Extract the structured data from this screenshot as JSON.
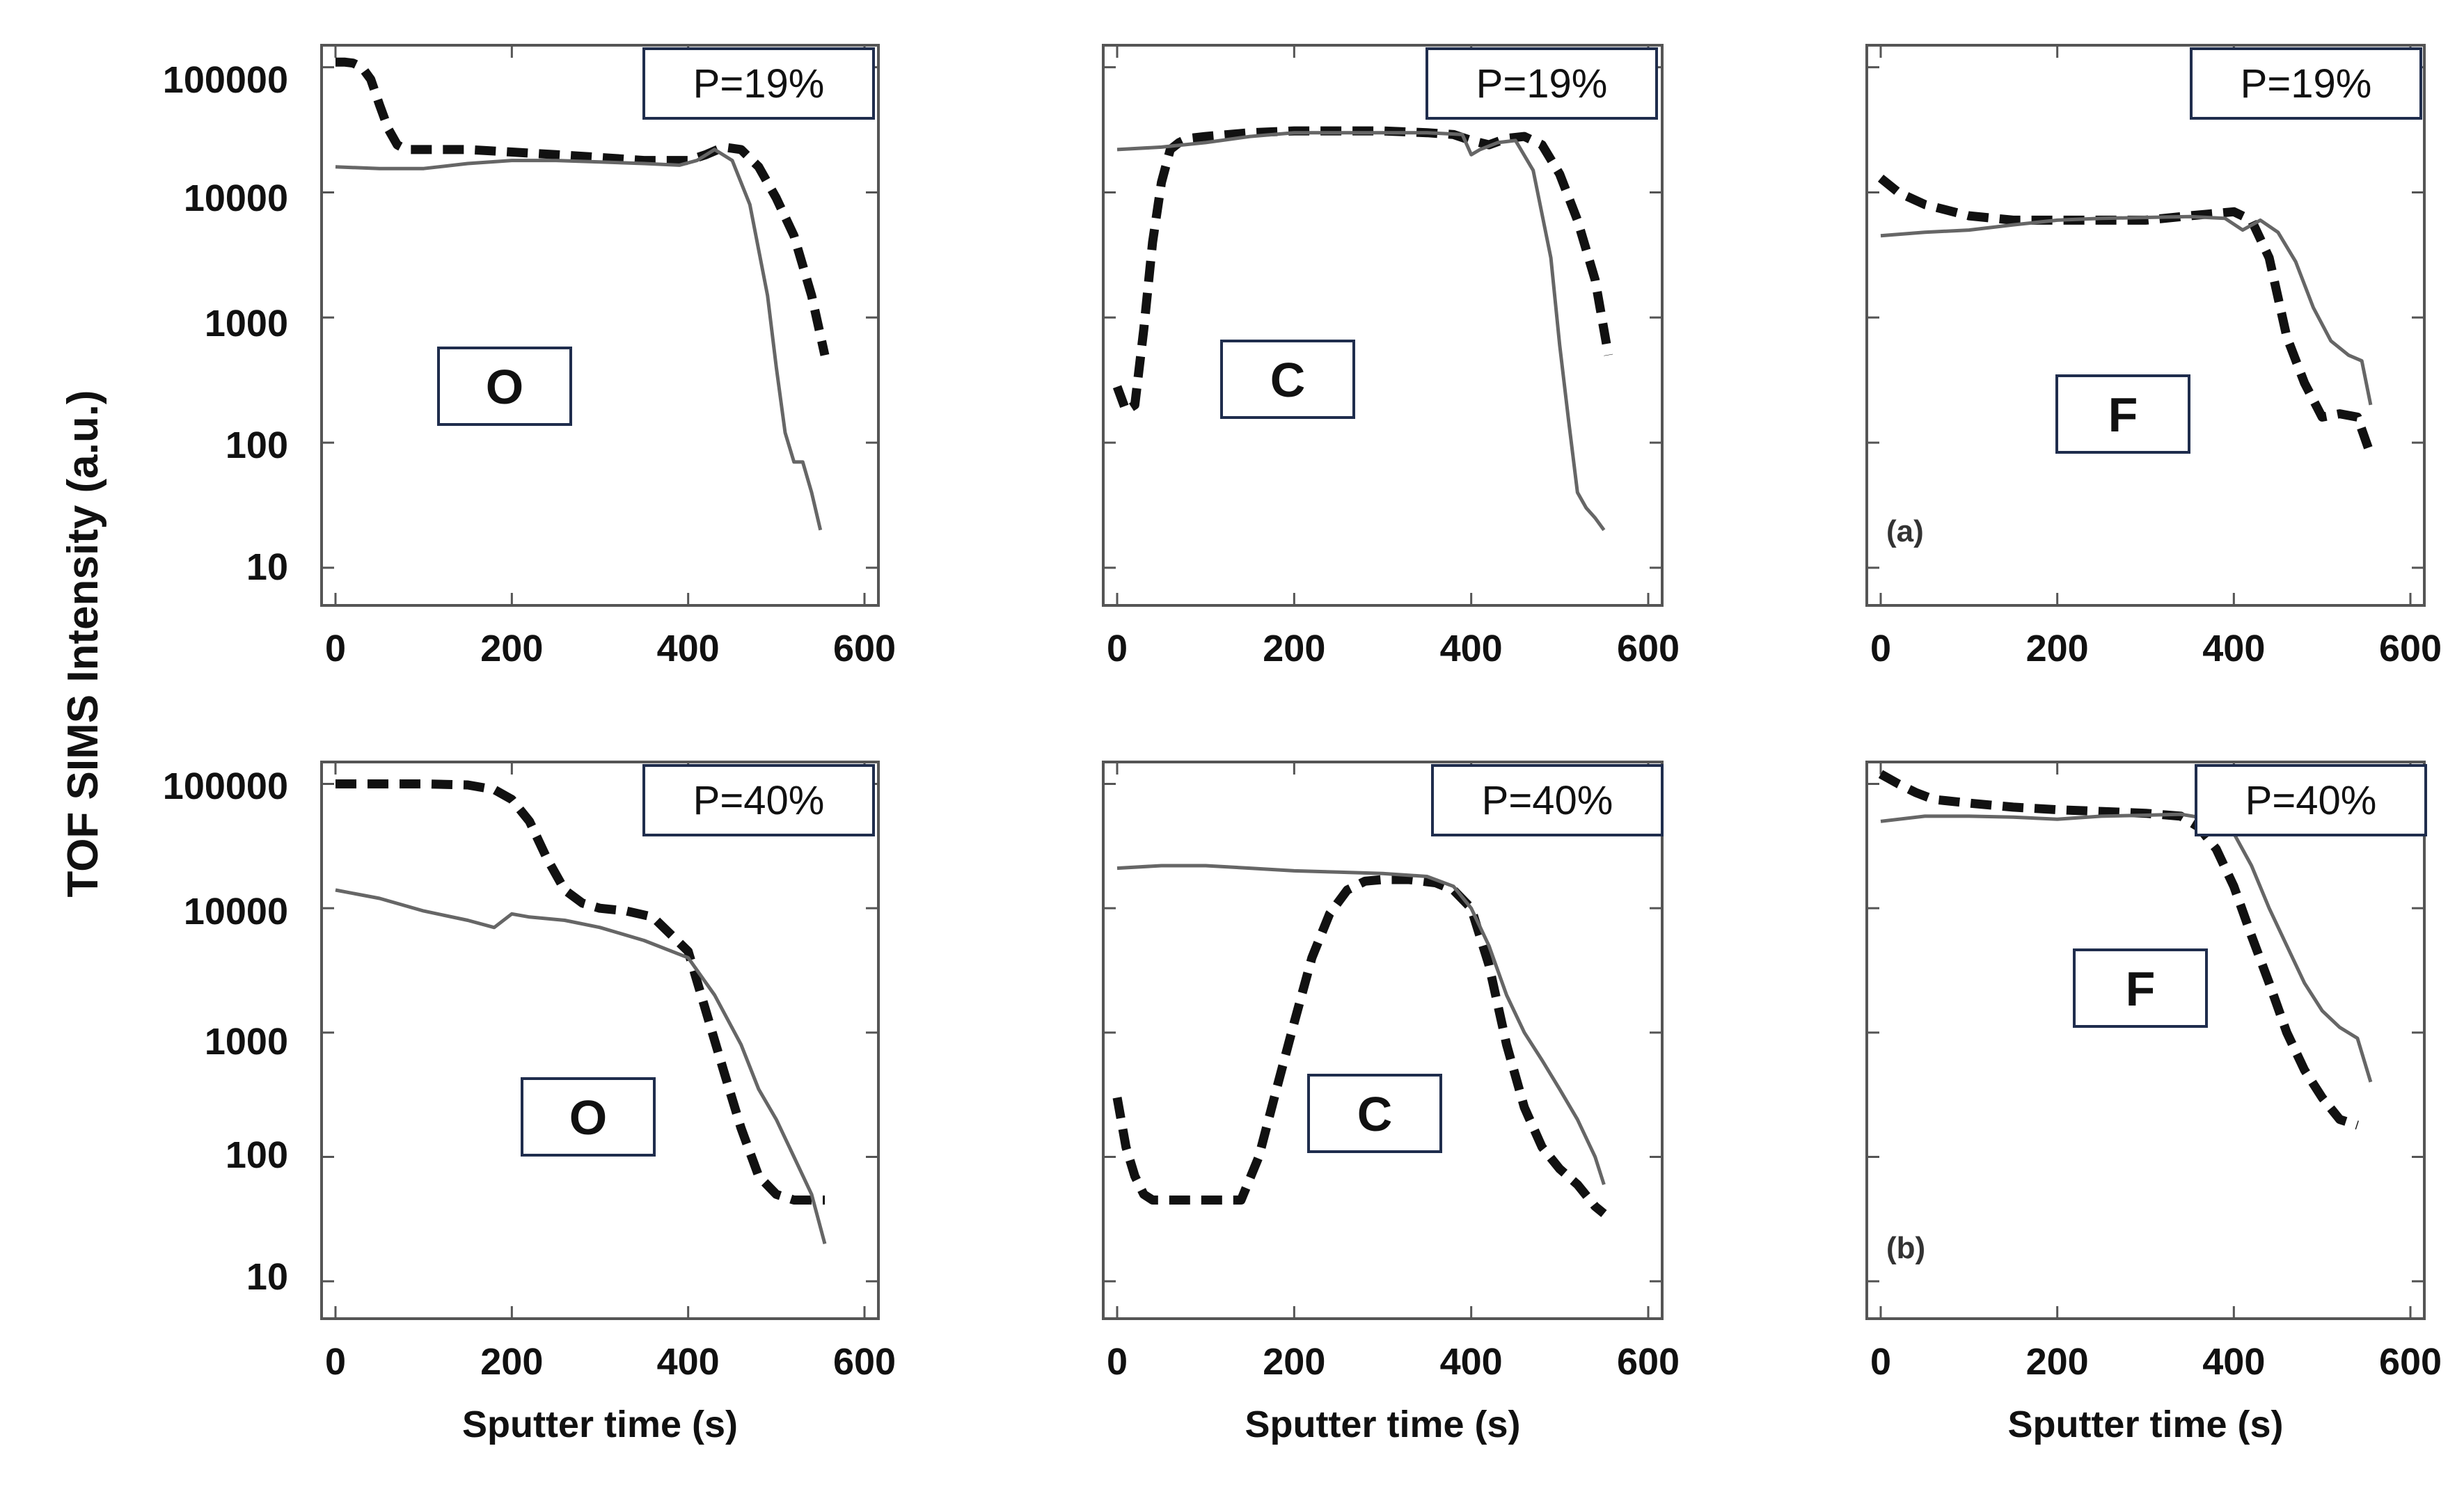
{
  "figure": {
    "ylabel": "TOF SIMS Intensity (a.u.)",
    "xlabel": "Sputter time (s)",
    "panel_tags": [
      "(a)",
      "(b)"
    ]
  },
  "chart_data": [
    {
      "type": "line",
      "row": "top",
      "element": "O",
      "label": "P=19%",
      "xlim": [
        0,
        600
      ],
      "ylim": [
        5,
        150000
      ],
      "yscale": "log",
      "x_ticks": [
        0,
        200,
        400,
        600
      ],
      "y_ticks": [
        10,
        100,
        1000,
        10000,
        100000
      ],
      "series": [
        {
          "name": "dashed",
          "style": "dashed",
          "x": [
            0,
            10,
            20,
            30,
            40,
            50,
            60,
            70,
            80,
            100,
            150,
            200,
            250,
            300,
            350,
            380,
            400,
            420,
            440,
            460,
            480,
            500,
            520,
            540,
            555
          ],
          "y": [
            110000,
            110000,
            108000,
            100000,
            80000,
            50000,
            32000,
            24000,
            22000,
            22000,
            22000,
            21000,
            20000,
            19000,
            18000,
            18000,
            18000,
            20000,
            23000,
            22000,
            16000,
            9000,
            4500,
            1500,
            500
          ]
        },
        {
          "name": "solid",
          "style": "solid",
          "x": [
            0,
            50,
            100,
            150,
            200,
            250,
            300,
            350,
            390,
            410,
            430,
            450,
            470,
            490,
            500,
            510,
            520,
            530,
            540,
            550
          ],
          "y": [
            16000,
            15500,
            15500,
            17000,
            18000,
            18000,
            17500,
            17000,
            16500,
            18000,
            22000,
            18000,
            8000,
            1500,
            400,
            120,
            70,
            70,
            40,
            20
          ]
        }
      ]
    },
    {
      "type": "line",
      "row": "top",
      "element": "C",
      "label": "P=19%",
      "xlim": [
        0,
        600
      ],
      "ylim": [
        5,
        150000
      ],
      "yscale": "log",
      "x_ticks": [
        0,
        200,
        400,
        600
      ],
      "y_ticks": [
        10,
        100,
        1000,
        10000,
        100000
      ],
      "series": [
        {
          "name": "dashed",
          "style": "dashed",
          "x": [
            0,
            10,
            20,
            30,
            40,
            50,
            60,
            70,
            80,
            100,
            150,
            200,
            250,
            300,
            350,
            380,
            400,
            420,
            440,
            460,
            480,
            500,
            520,
            540,
            555
          ],
          "y": [
            280,
            180,
            200,
            800,
            4000,
            12000,
            22000,
            25000,
            27000,
            28000,
            30000,
            31000,
            31000,
            31000,
            30000,
            29000,
            26000,
            24000,
            27000,
            28000,
            24000,
            14000,
            6000,
            2000,
            500
          ]
        },
        {
          "name": "solid",
          "style": "solid",
          "x": [
            0,
            50,
            100,
            150,
            200,
            250,
            300,
            350,
            390,
            400,
            410,
            430,
            450,
            470,
            490,
            500,
            510,
            520,
            530,
            540,
            550
          ],
          "y": [
            22000,
            23000,
            25000,
            28000,
            30000,
            30000,
            30000,
            30000,
            29000,
            20000,
            22000,
            25000,
            26000,
            15000,
            3000,
            600,
            150,
            40,
            30,
            25,
            20
          ]
        }
      ]
    },
    {
      "type": "line",
      "row": "top",
      "element": "F",
      "label": "P=19%",
      "xlim": [
        0,
        600
      ],
      "ylim": [
        5,
        150000
      ],
      "yscale": "log",
      "x_ticks": [
        0,
        200,
        400,
        600
      ],
      "y_ticks": [
        10,
        100,
        1000,
        10000,
        100000
      ],
      "series": [
        {
          "name": "dashed",
          "style": "dashed",
          "x": [
            0,
            20,
            50,
            100,
            150,
            200,
            250,
            300,
            350,
            400,
            420,
            440,
            460,
            480,
            500,
            520,
            540,
            555
          ],
          "y": [
            13000,
            10000,
            8000,
            6500,
            6000,
            6000,
            6000,
            6000,
            6500,
            7000,
            6000,
            3000,
            700,
            300,
            160,
            170,
            160,
            80
          ]
        },
        {
          "name": "solid",
          "style": "solid",
          "x": [
            0,
            50,
            100,
            150,
            200,
            250,
            300,
            350,
            390,
            410,
            430,
            450,
            470,
            490,
            510,
            530,
            545,
            555
          ],
          "y": [
            4500,
            4800,
            5000,
            5500,
            6000,
            6200,
            6300,
            6400,
            6200,
            5000,
            6000,
            4800,
            2800,
            1200,
            650,
            500,
            450,
            200
          ]
        }
      ]
    },
    {
      "type": "line",
      "row": "bottom",
      "element": "O",
      "label": "P=40%",
      "xlim": [
        0,
        600
      ],
      "ylim": [
        5,
        150000
      ],
      "yscale": "log",
      "x_ticks": [
        0,
        200,
        400,
        600
      ],
      "y_ticks": [
        10,
        100,
        1000,
        10000,
        100000
      ],
      "series": [
        {
          "name": "dashed",
          "style": "dashed",
          "x": [
            0,
            50,
            100,
            150,
            180,
            200,
            220,
            240,
            260,
            280,
            300,
            330,
            360,
            400,
            420,
            440,
            460,
            480,
            500,
            520,
            540,
            555
          ],
          "y": [
            100000,
            100000,
            100000,
            98000,
            90000,
            75000,
            50000,
            25000,
            14000,
            11000,
            10000,
            9500,
            8500,
            4500,
            1500,
            500,
            170,
            70,
            50,
            45,
            45,
            45
          ]
        },
        {
          "name": "solid",
          "style": "solid",
          "x": [
            0,
            50,
            100,
            150,
            180,
            200,
            220,
            260,
            300,
            350,
            400,
            430,
            460,
            480,
            500,
            520,
            540,
            555
          ],
          "y": [
            14000,
            12000,
            9500,
            8000,
            7000,
            9000,
            8500,
            8000,
            7000,
            5500,
            4000,
            2000,
            800,
            350,
            200,
            100,
            50,
            20
          ]
        }
      ]
    },
    {
      "type": "line",
      "row": "bottom",
      "element": "C",
      "label": "P=40%",
      "xlim": [
        0,
        600
      ],
      "ylim": [
        5,
        150000
      ],
      "yscale": "log",
      "x_ticks": [
        0,
        200,
        400,
        600
      ],
      "y_ticks": [
        10,
        100,
        1000,
        10000,
        100000
      ],
      "series": [
        {
          "name": "dashed",
          "style": "dashed",
          "x": [
            0,
            10,
            20,
            30,
            40,
            60,
            90,
            120,
            140,
            160,
            180,
            200,
            220,
            240,
            260,
            280,
            300,
            330,
            360,
            380,
            400,
            420,
            440,
            460,
            480,
            500,
            520,
            540,
            550
          ],
          "y": [
            300,
            120,
            70,
            50,
            45,
            45,
            45,
            45,
            45,
            100,
            350,
            1200,
            4000,
            9000,
            14000,
            16500,
            17000,
            17000,
            16000,
            14000,
            10000,
            3500,
            800,
            250,
            120,
            80,
            60,
            40,
            35
          ]
        },
        {
          "name": "solid",
          "style": "solid",
          "x": [
            0,
            50,
            100,
            150,
            200,
            250,
            300,
            350,
            380,
            400,
            420,
            440,
            460,
            480,
            500,
            520,
            540,
            550
          ],
          "y": [
            21000,
            22000,
            22000,
            21000,
            20000,
            19500,
            19000,
            18000,
            15000,
            10000,
            5000,
            2000,
            1000,
            600,
            350,
            200,
            100,
            60
          ]
        }
      ]
    },
    {
      "type": "line",
      "row": "bottom",
      "element": "F",
      "label": "P=40%",
      "xlim": [
        0,
        600
      ],
      "ylim": [
        5,
        150000
      ],
      "yscale": "log",
      "x_ticks": [
        0,
        200,
        400,
        600
      ],
      "y_ticks": [
        10,
        100,
        1000,
        10000,
        100000
      ],
      "series": [
        {
          "name": "dashed",
          "style": "dashed",
          "x": [
            0,
            20,
            40,
            60,
            100,
            150,
            200,
            250,
            300,
            340,
            360,
            380,
            400,
            420,
            440,
            460,
            480,
            500,
            520,
            540
          ],
          "y": [
            120000,
            100000,
            85000,
            75000,
            70000,
            65000,
            62000,
            60000,
            58000,
            55000,
            45000,
            30000,
            15000,
            6000,
            2500,
            1000,
            500,
            300,
            200,
            180
          ]
        },
        {
          "name": "solid",
          "style": "solid",
          "x": [
            0,
            50,
            100,
            150,
            200,
            250,
            300,
            340,
            360,
            380,
            400,
            420,
            440,
            460,
            480,
            500,
            520,
            540,
            555
          ],
          "y": [
            50000,
            55000,
            55000,
            54000,
            52000,
            55000,
            56000,
            57000,
            54000,
            48000,
            40000,
            22000,
            10000,
            5000,
            2500,
            1500,
            1100,
            900,
            400
          ]
        }
      ]
    }
  ]
}
